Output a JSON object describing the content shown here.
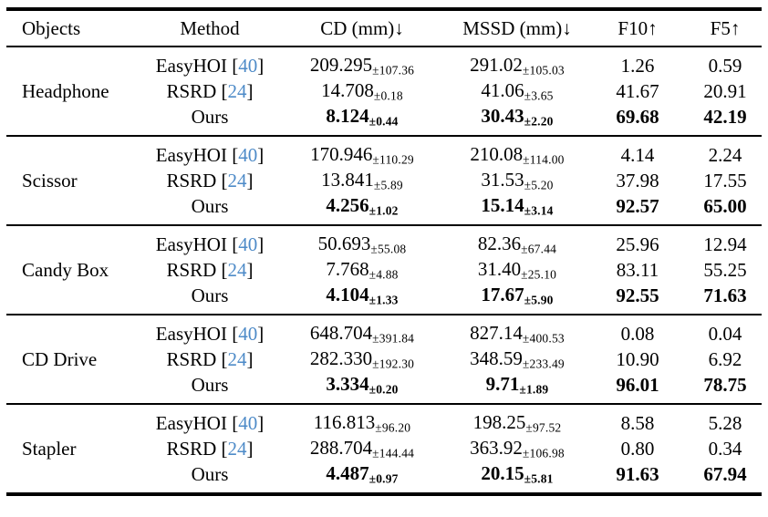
{
  "table": {
    "headers": {
      "objects": "Objects",
      "method": "Method",
      "cd": "CD (mm)↓",
      "mssd": "MSSD (mm)↓",
      "f10": "F10↑",
      "f5": "F5↑"
    },
    "citation_color": "#4e8bc8",
    "groups": [
      {
        "object": "Headphone",
        "rows": [
          {
            "method": "EasyHOI [",
            "cite": "40",
            "close": "]",
            "cd": {
              "v": "209.295",
              "pm": "±107.36"
            },
            "mssd": {
              "v": "291.02",
              "pm": "±105.03"
            },
            "f10": "1.26",
            "f5": "0.59"
          },
          {
            "method": "RSRD [",
            "cite": "24",
            "close": "]",
            "cd": {
              "v": "14.708",
              "pm": "±0.18"
            },
            "mssd": {
              "v": "41.06",
              "pm": "±3.65"
            },
            "f10": "41.67",
            "f5": "20.91"
          },
          {
            "method": "Ours",
            "cite": "",
            "close": "",
            "cd": {
              "v": "8.124",
              "pm": "±0.44"
            },
            "mssd": {
              "v": "30.43",
              "pm": "±2.20"
            },
            "f10": "69.68",
            "f5": "42.19"
          }
        ]
      },
      {
        "object": "Scissor",
        "rows": [
          {
            "method": "EasyHOI [",
            "cite": "40",
            "close": "]",
            "cd": {
              "v": "170.946",
              "pm": "±110.29"
            },
            "mssd": {
              "v": "210.08",
              "pm": "±114.00"
            },
            "f10": "4.14",
            "f5": "2.24"
          },
          {
            "method": "RSRD [",
            "cite": "24",
            "close": "]",
            "cd": {
              "v": "13.841",
              "pm": "±5.89"
            },
            "mssd": {
              "v": "31.53",
              "pm": "±5.20"
            },
            "f10": "37.98",
            "f5": "17.55"
          },
          {
            "method": "Ours",
            "cite": "",
            "close": "",
            "cd": {
              "v": "4.256",
              "pm": "±1.02"
            },
            "mssd": {
              "v": "15.14",
              "pm": "±3.14"
            },
            "f10": "92.57",
            "f5": "65.00"
          }
        ]
      },
      {
        "object": "Candy Box",
        "rows": [
          {
            "method": "EasyHOI [",
            "cite": "40",
            "close": "]",
            "cd": {
              "v": "50.693",
              "pm": "±55.08"
            },
            "mssd": {
              "v": "82.36",
              "pm": "±67.44"
            },
            "f10": "25.96",
            "f5": "12.94"
          },
          {
            "method": "RSRD [",
            "cite": "24",
            "close": "]",
            "cd": {
              "v": "7.768",
              "pm": "±4.88"
            },
            "mssd": {
              "v": "31.40",
              "pm": "±25.10"
            },
            "f10": "83.11",
            "f5": "55.25"
          },
          {
            "method": "Ours",
            "cite": "",
            "close": "",
            "cd": {
              "v": "4.104",
              "pm": "±1.33"
            },
            "mssd": {
              "v": "17.67",
              "pm": "±5.90"
            },
            "f10": "92.55",
            "f5": "71.63"
          }
        ]
      },
      {
        "object": "CD Drive",
        "rows": [
          {
            "method": "EasyHOI [",
            "cite": "40",
            "close": "]",
            "cd": {
              "v": "648.704",
              "pm": "±391.84"
            },
            "mssd": {
              "v": "827.14",
              "pm": "±400.53"
            },
            "f10": "0.08",
            "f5": "0.04"
          },
          {
            "method": "RSRD [",
            "cite": "24",
            "close": "]",
            "cd": {
              "v": "282.330",
              "pm": "±192.30"
            },
            "mssd": {
              "v": "348.59",
              "pm": "±233.49"
            },
            "f10": "10.90",
            "f5": "6.92"
          },
          {
            "method": "Ours",
            "cite": "",
            "close": "",
            "cd": {
              "v": "3.334",
              "pm": "±0.20"
            },
            "mssd": {
              "v": "9.71",
              "pm": "±1.89"
            },
            "f10": "96.01",
            "f5": "78.75"
          }
        ]
      },
      {
        "object": "Stapler",
        "rows": [
          {
            "method": "EasyHOI [",
            "cite": "40",
            "close": "]",
            "cd": {
              "v": "116.813",
              "pm": "±96.20"
            },
            "mssd": {
              "v": "198.25",
              "pm": "±97.52"
            },
            "f10": "8.58",
            "f5": "5.28"
          },
          {
            "method": "RSRD [",
            "cite": "24",
            "close": "]",
            "cd": {
              "v": "288.704",
              "pm": "±144.44"
            },
            "mssd": {
              "v": "363.92",
              "pm": "±106.98"
            },
            "f10": "0.80",
            "f5": "0.34"
          },
          {
            "method": "Ours",
            "cite": "",
            "close": "",
            "cd": {
              "v": "4.487",
              "pm": "±0.97"
            },
            "mssd": {
              "v": "20.15",
              "pm": "±5.81"
            },
            "f10": "91.63",
            "f5": "67.94"
          }
        ]
      }
    ]
  }
}
